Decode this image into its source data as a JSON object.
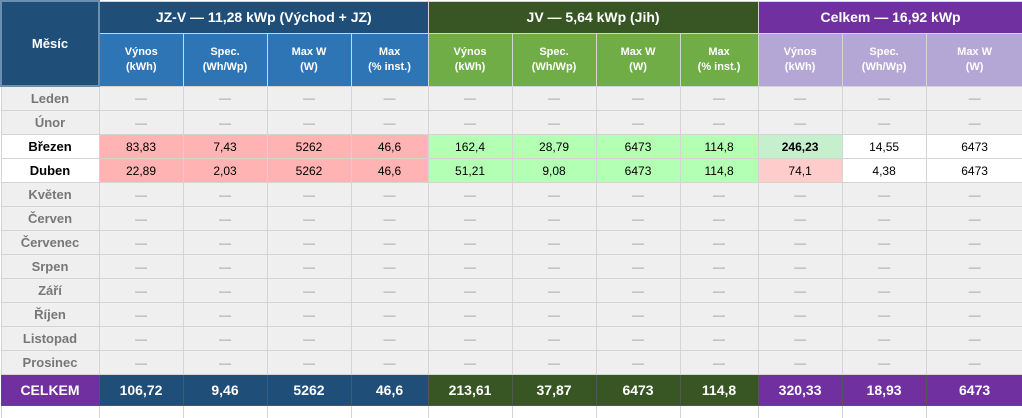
{
  "corner": "Měsíc",
  "groups": [
    {
      "title": "JZ-V  —  11,28 kWp  (Východ + JZ)",
      "columns": [
        "Výnos\n(kWh)",
        "Spec.\n(Wh/Wp)",
        "Max W\n(W)",
        "Max\n(% inst.)"
      ]
    },
    {
      "title": "JV  —  5,64 kWp  (Jih)",
      "columns": [
        "Výnos\n(kWh)",
        "Spec.\n(Wh/Wp)",
        "Max W\n(W)",
        "Max\n(% inst.)"
      ]
    },
    {
      "title": "Celkem  —  16,92 kWp",
      "columns": [
        "Výnos\n(kWh)",
        "Spec.\n(Wh/Wp)",
        "Max W\n(W)"
      ]
    }
  ],
  "rows": [
    {
      "month": "Leden",
      "cells": [
        "—",
        "—",
        "—",
        "—",
        "—",
        "—",
        "—",
        "—",
        "—",
        "—",
        "—"
      ]
    },
    {
      "month": "Únor",
      "cells": [
        "—",
        "—",
        "—",
        "—",
        "—",
        "—",
        "—",
        "—",
        "—",
        "—",
        "—"
      ]
    },
    {
      "month": "Březen",
      "cells": [
        "83,83",
        "7,43",
        "5262",
        "46,6",
        "162,4",
        "28,79",
        "6473",
        "114,8",
        "246,23",
        "14,55",
        "6473"
      ]
    },
    {
      "month": "Duben",
      "cells": [
        "22,89",
        "2,03",
        "5262",
        "46,6",
        "51,21",
        "9,08",
        "6473",
        "114,8",
        "74,1",
        "4,38",
        "6473"
      ]
    },
    {
      "month": "Květen",
      "cells": [
        "—",
        "—",
        "—",
        "—",
        "—",
        "—",
        "—",
        "—",
        "—",
        "—",
        "—"
      ]
    },
    {
      "month": "Červen",
      "cells": [
        "—",
        "—",
        "—",
        "—",
        "—",
        "—",
        "—",
        "—",
        "—",
        "—",
        "—"
      ]
    },
    {
      "month": "Červenec",
      "cells": [
        "—",
        "—",
        "—",
        "—",
        "—",
        "—",
        "—",
        "—",
        "—",
        "—",
        "—"
      ]
    },
    {
      "month": "Srpen",
      "cells": [
        "—",
        "—",
        "—",
        "—",
        "—",
        "—",
        "—",
        "—",
        "—",
        "—",
        "—"
      ]
    },
    {
      "month": "Září",
      "cells": [
        "—",
        "—",
        "—",
        "—",
        "—",
        "—",
        "—",
        "—",
        "—",
        "—",
        "—"
      ]
    },
    {
      "month": "Říjen",
      "cells": [
        "—",
        "—",
        "—",
        "—",
        "—",
        "—",
        "—",
        "—",
        "—",
        "—",
        "—"
      ]
    },
    {
      "month": "Listopad",
      "cells": [
        "—",
        "—",
        "—",
        "—",
        "—",
        "—",
        "—",
        "—",
        "—",
        "—",
        "—"
      ]
    },
    {
      "month": "Prosinec",
      "cells": [
        "—",
        "—",
        "—",
        "—",
        "—",
        "—",
        "—",
        "—",
        "—",
        "—",
        "—"
      ]
    }
  ],
  "total": {
    "label": "CELKEM",
    "cells": [
      "106,72",
      "9,46",
      "5262",
      "46,6",
      "213,61",
      "37,87",
      "6473",
      "114,8",
      "320,33",
      "18,93",
      "6473"
    ]
  }
}
